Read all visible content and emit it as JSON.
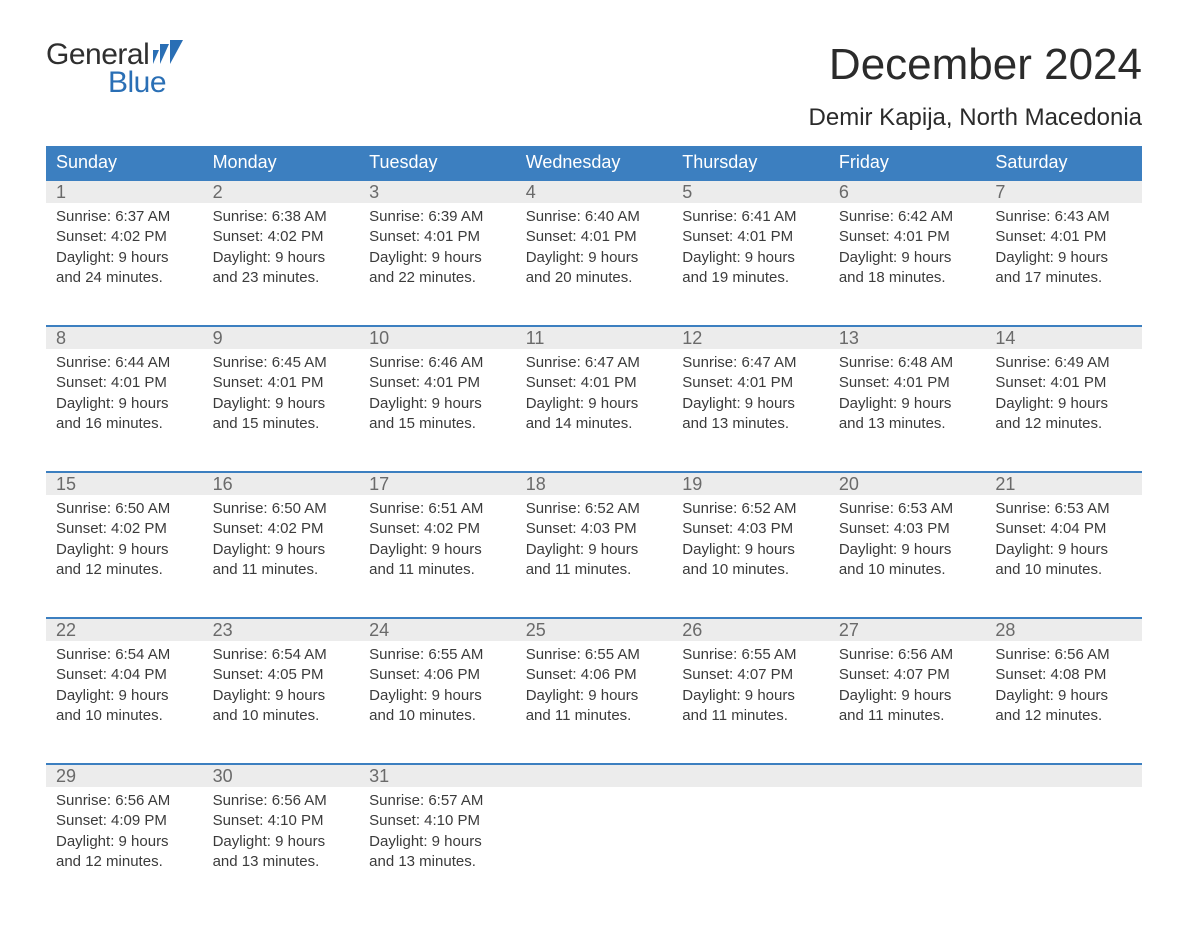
{
  "brand": {
    "word1": "General",
    "word2": "Blue",
    "accent_color": "#2a6fb5",
    "text_color": "#2f2f2f"
  },
  "title": "December 2024",
  "location": "Demir Kapija, North Macedonia",
  "colors": {
    "header_bg": "#3c7fc0",
    "header_text": "#ffffff",
    "daynum_bg": "#ececec",
    "daynum_text": "#6a6a6a",
    "body_text": "#3b3b3b",
    "week_border": "#3c7fc0",
    "page_bg": "#ffffff"
  },
  "typography": {
    "font_family": "Arial",
    "title_fontsize": 44,
    "location_fontsize": 24,
    "dow_fontsize": 18,
    "daynum_fontsize": 18,
    "body_fontsize": 15
  },
  "days_of_week": [
    "Sunday",
    "Monday",
    "Tuesday",
    "Wednesday",
    "Thursday",
    "Friday",
    "Saturday"
  ],
  "labels": {
    "sunrise": "Sunrise:",
    "sunset": "Sunset:",
    "daylight": "Daylight:"
  },
  "weeks": [
    [
      {
        "n": "1",
        "sunrise": "6:37 AM",
        "sunset": "4:02 PM",
        "daylight": "9 hours and 24 minutes."
      },
      {
        "n": "2",
        "sunrise": "6:38 AM",
        "sunset": "4:02 PM",
        "daylight": "9 hours and 23 minutes."
      },
      {
        "n": "3",
        "sunrise": "6:39 AM",
        "sunset": "4:01 PM",
        "daylight": "9 hours and 22 minutes."
      },
      {
        "n": "4",
        "sunrise": "6:40 AM",
        "sunset": "4:01 PM",
        "daylight": "9 hours and 20 minutes."
      },
      {
        "n": "5",
        "sunrise": "6:41 AM",
        "sunset": "4:01 PM",
        "daylight": "9 hours and 19 minutes."
      },
      {
        "n": "6",
        "sunrise": "6:42 AM",
        "sunset": "4:01 PM",
        "daylight": "9 hours and 18 minutes."
      },
      {
        "n": "7",
        "sunrise": "6:43 AM",
        "sunset": "4:01 PM",
        "daylight": "9 hours and 17 minutes."
      }
    ],
    [
      {
        "n": "8",
        "sunrise": "6:44 AM",
        "sunset": "4:01 PM",
        "daylight": "9 hours and 16 minutes."
      },
      {
        "n": "9",
        "sunrise": "6:45 AM",
        "sunset": "4:01 PM",
        "daylight": "9 hours and 15 minutes."
      },
      {
        "n": "10",
        "sunrise": "6:46 AM",
        "sunset": "4:01 PM",
        "daylight": "9 hours and 15 minutes."
      },
      {
        "n": "11",
        "sunrise": "6:47 AM",
        "sunset": "4:01 PM",
        "daylight": "9 hours and 14 minutes."
      },
      {
        "n": "12",
        "sunrise": "6:47 AM",
        "sunset": "4:01 PM",
        "daylight": "9 hours and 13 minutes."
      },
      {
        "n": "13",
        "sunrise": "6:48 AM",
        "sunset": "4:01 PM",
        "daylight": "9 hours and 13 minutes."
      },
      {
        "n": "14",
        "sunrise": "6:49 AM",
        "sunset": "4:01 PM",
        "daylight": "9 hours and 12 minutes."
      }
    ],
    [
      {
        "n": "15",
        "sunrise": "6:50 AM",
        "sunset": "4:02 PM",
        "daylight": "9 hours and 12 minutes."
      },
      {
        "n": "16",
        "sunrise": "6:50 AM",
        "sunset": "4:02 PM",
        "daylight": "9 hours and 11 minutes."
      },
      {
        "n": "17",
        "sunrise": "6:51 AM",
        "sunset": "4:02 PM",
        "daylight": "9 hours and 11 minutes."
      },
      {
        "n": "18",
        "sunrise": "6:52 AM",
        "sunset": "4:03 PM",
        "daylight": "9 hours and 11 minutes."
      },
      {
        "n": "19",
        "sunrise": "6:52 AM",
        "sunset": "4:03 PM",
        "daylight": "9 hours and 10 minutes."
      },
      {
        "n": "20",
        "sunrise": "6:53 AM",
        "sunset": "4:03 PM",
        "daylight": "9 hours and 10 minutes."
      },
      {
        "n": "21",
        "sunrise": "6:53 AM",
        "sunset": "4:04 PM",
        "daylight": "9 hours and 10 minutes."
      }
    ],
    [
      {
        "n": "22",
        "sunrise": "6:54 AM",
        "sunset": "4:04 PM",
        "daylight": "9 hours and 10 minutes."
      },
      {
        "n": "23",
        "sunrise": "6:54 AM",
        "sunset": "4:05 PM",
        "daylight": "9 hours and 10 minutes."
      },
      {
        "n": "24",
        "sunrise": "6:55 AM",
        "sunset": "4:06 PM",
        "daylight": "9 hours and 10 minutes."
      },
      {
        "n": "25",
        "sunrise": "6:55 AM",
        "sunset": "4:06 PM",
        "daylight": "9 hours and 11 minutes."
      },
      {
        "n": "26",
        "sunrise": "6:55 AM",
        "sunset": "4:07 PM",
        "daylight": "9 hours and 11 minutes."
      },
      {
        "n": "27",
        "sunrise": "6:56 AM",
        "sunset": "4:07 PM",
        "daylight": "9 hours and 11 minutes."
      },
      {
        "n": "28",
        "sunrise": "6:56 AM",
        "sunset": "4:08 PM",
        "daylight": "9 hours and 12 minutes."
      }
    ],
    [
      {
        "n": "29",
        "sunrise": "6:56 AM",
        "sunset": "4:09 PM",
        "daylight": "9 hours and 12 minutes."
      },
      {
        "n": "30",
        "sunrise": "6:56 AM",
        "sunset": "4:10 PM",
        "daylight": "9 hours and 13 minutes."
      },
      {
        "n": "31",
        "sunrise": "6:57 AM",
        "sunset": "4:10 PM",
        "daylight": "9 hours and 13 minutes."
      },
      null,
      null,
      null,
      null
    ]
  ]
}
